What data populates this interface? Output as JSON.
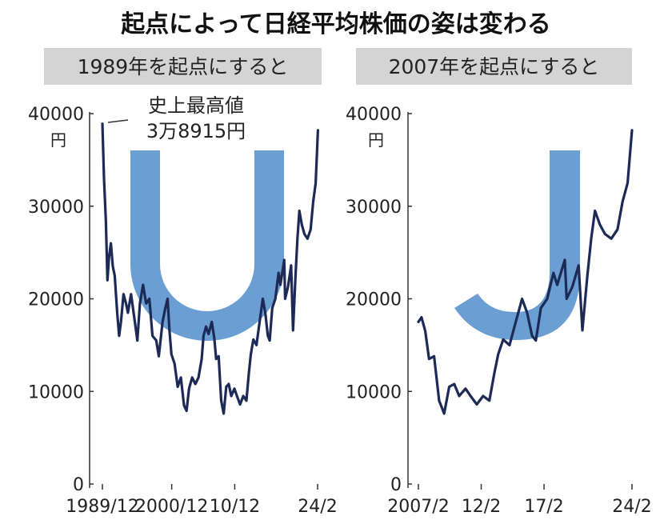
{
  "title": "起点によって日経平均株価の姿は変わる",
  "colors": {
    "line": "#1c2a55",
    "shape": "#6b9fd4",
    "header_bg": "#d4d4d4",
    "axis": "#333333"
  },
  "chart_data": [
    {
      "type": "line",
      "panel_title": "1989年を起点にすると",
      "unit_label": "円",
      "ylim": [
        0,
        40000
      ],
      "y_ticks": [
        "40000",
        "30000",
        "20000",
        "10000",
        "0"
      ],
      "x_tick_labels": [
        "1989/12",
        "2000/12",
        "10/12",
        "24/2"
      ],
      "x_range": [
        1989.9,
        2024.15
      ],
      "x_tick_values": [
        1989.95,
        2000.95,
        2010.95,
        2024.1
      ],
      "overlay_shape": "U",
      "annotation": {
        "line1": "史上最高値",
        "line2": "3万8915円"
      },
      "points": [
        [
          1989.95,
          38900
        ],
        [
          1990.2,
          33000
        ],
        [
          1990.5,
          28500
        ],
        [
          1990.75,
          22000
        ],
        [
          1991.0,
          24500
        ],
        [
          1991.3,
          26000
        ],
        [
          1991.6,
          23500
        ],
        [
          1991.9,
          22500
        ],
        [
          1992.3,
          18500
        ],
        [
          1992.6,
          16000
        ],
        [
          1992.9,
          17500
        ],
        [
          1993.3,
          20500
        ],
        [
          1993.7,
          19500
        ],
        [
          1994.0,
          18500
        ],
        [
          1994.5,
          20500
        ],
        [
          1995.0,
          18000
        ],
        [
          1995.5,
          15500
        ],
        [
          1995.9,
          19500
        ],
        [
          1996.4,
          21500
        ],
        [
          1996.9,
          19500
        ],
        [
          1997.4,
          20000
        ],
        [
          1997.9,
          16000
        ],
        [
          1998.5,
          15500
        ],
        [
          1998.9,
          13800
        ],
        [
          1999.5,
          17500
        ],
        [
          1999.9,
          18900
        ],
        [
          2000.3,
          20000
        ],
        [
          2000.6,
          16500
        ],
        [
          2000.9,
          14000
        ],
        [
          2001.4,
          13000
        ],
        [
          2001.9,
          10500
        ],
        [
          2002.4,
          11500
        ],
        [
          2002.9,
          8500
        ],
        [
          2003.3,
          7900
        ],
        [
          2003.7,
          10300
        ],
        [
          2004.2,
          11500
        ],
        [
          2004.7,
          10800
        ],
        [
          2005.2,
          11500
        ],
        [
          2005.7,
          13500
        ],
        [
          2006.0,
          16000
        ],
        [
          2006.4,
          17000
        ],
        [
          2006.8,
          16200
        ],
        [
          2007.3,
          17500
        ],
        [
          2007.7,
          15800
        ],
        [
          2008.0,
          13500
        ],
        [
          2008.4,
          13800
        ],
        [
          2008.8,
          9000
        ],
        [
          2009.2,
          7600
        ],
        [
          2009.6,
          10500
        ],
        [
          2010.0,
          10800
        ],
        [
          2010.4,
          9500
        ],
        [
          2010.9,
          10300
        ],
        [
          2011.3,
          9500
        ],
        [
          2011.8,
          8600
        ],
        [
          2012.3,
          9500
        ],
        [
          2012.8,
          9000
        ],
        [
          2013.2,
          12000
        ],
        [
          2013.5,
          14000
        ],
        [
          2013.9,
          15600
        ],
        [
          2014.4,
          15000
        ],
        [
          2014.9,
          17500
        ],
        [
          2015.4,
          20000
        ],
        [
          2015.8,
          18500
        ],
        [
          2016.2,
          16000
        ],
        [
          2016.5,
          15500
        ],
        [
          2016.9,
          19000
        ],
        [
          2017.4,
          20000
        ],
        [
          2017.9,
          22800
        ],
        [
          2018.2,
          21500
        ],
        [
          2018.8,
          24200
        ],
        [
          2018.95,
          20000
        ],
        [
          2019.4,
          21300
        ],
        [
          2019.9,
          23600
        ],
        [
          2020.2,
          16600
        ],
        [
          2020.6,
          22500
        ],
        [
          2020.9,
          26500
        ],
        [
          2021.2,
          29500
        ],
        [
          2021.6,
          28000
        ],
        [
          2022.0,
          27000
        ],
        [
          2022.5,
          26500
        ],
        [
          2023.0,
          27500
        ],
        [
          2023.4,
          30500
        ],
        [
          2023.8,
          32500
        ],
        [
          2024.15,
          38200
        ]
      ]
    },
    {
      "type": "line",
      "panel_title": "2007年を起点にすると",
      "unit_label": "円",
      "ylim": [
        0,
        40000
      ],
      "y_ticks": [
        "40000",
        "30000",
        "20000",
        "10000",
        "0"
      ],
      "x_tick_labels": [
        "2007/2",
        "12/2",
        "17/2",
        "24/2"
      ],
      "x_range": [
        2006.7,
        2024.3
      ],
      "x_tick_values": [
        2007.15,
        2012.15,
        2017.15,
        2024.15
      ],
      "overlay_shape": "J",
      "points": [
        [
          2007.15,
          17500
        ],
        [
          2007.4,
          18000
        ],
        [
          2007.7,
          16500
        ],
        [
          2008.0,
          13500
        ],
        [
          2008.4,
          13800
        ],
        [
          2008.8,
          9000
        ],
        [
          2009.2,
          7600
        ],
        [
          2009.6,
          10500
        ],
        [
          2010.0,
          10800
        ],
        [
          2010.4,
          9500
        ],
        [
          2010.9,
          10300
        ],
        [
          2011.3,
          9500
        ],
        [
          2011.8,
          8600
        ],
        [
          2012.3,
          9500
        ],
        [
          2012.8,
          9000
        ],
        [
          2013.2,
          12000
        ],
        [
          2013.5,
          14000
        ],
        [
          2013.9,
          15600
        ],
        [
          2014.4,
          15000
        ],
        [
          2014.9,
          17500
        ],
        [
          2015.4,
          20000
        ],
        [
          2015.8,
          18500
        ],
        [
          2016.2,
          16000
        ],
        [
          2016.5,
          15500
        ],
        [
          2016.9,
          19000
        ],
        [
          2017.4,
          20000
        ],
        [
          2017.9,
          22800
        ],
        [
          2018.2,
          21500
        ],
        [
          2018.8,
          24200
        ],
        [
          2018.95,
          20000
        ],
        [
          2019.4,
          21300
        ],
        [
          2019.9,
          23600
        ],
        [
          2020.2,
          16600
        ],
        [
          2020.6,
          22500
        ],
        [
          2020.9,
          26500
        ],
        [
          2021.2,
          29500
        ],
        [
          2021.6,
          28000
        ],
        [
          2022.0,
          27000
        ],
        [
          2022.5,
          26500
        ],
        [
          2023.0,
          27500
        ],
        [
          2023.4,
          30500
        ],
        [
          2023.8,
          32500
        ],
        [
          2024.15,
          38200
        ]
      ]
    }
  ]
}
